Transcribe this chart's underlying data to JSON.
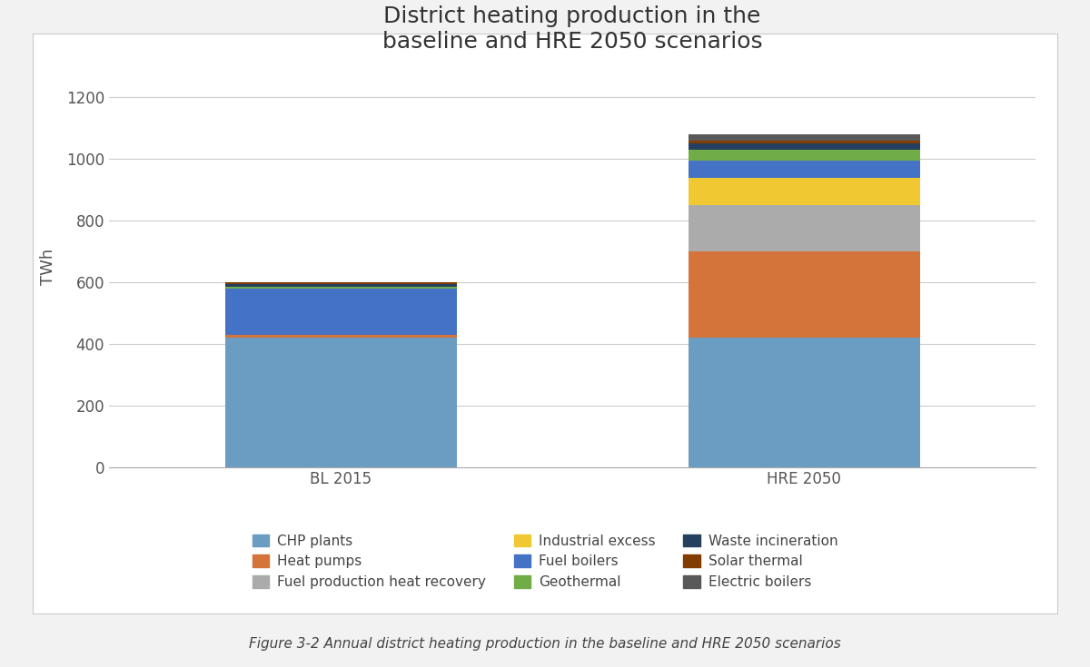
{
  "title": "District heating production in the\nbaseline and HRE 2050 scenarios",
  "ylabel": "TWh",
  "categories": [
    "BL 2015",
    "HRE 2050"
  ],
  "series": [
    {
      "label": "CHP plants",
      "color": "#6B9DC2",
      "values": [
        420,
        420
      ]
    },
    {
      "label": "Heat pumps",
      "color": "#D4743A",
      "values": [
        10,
        280
      ]
    },
    {
      "label": "Fuel production heat recovery",
      "color": "#ABABAB",
      "values": [
        0,
        150
      ]
    },
    {
      "label": "Industrial excess",
      "color": "#F0C832",
      "values": [
        0,
        90
      ]
    },
    {
      "label": "Fuel boilers",
      "color": "#4472C4",
      "values": [
        150,
        55
      ]
    },
    {
      "label": "Geothermal",
      "color": "#70AD47",
      "values": [
        5,
        35
      ]
    },
    {
      "label": "Waste incineration",
      "color": "#243F60",
      "values": [
        10,
        20
      ]
    },
    {
      "label": "Solar thermal",
      "color": "#833C00",
      "values": [
        5,
        10
      ]
    },
    {
      "label": "Electric boilers",
      "color": "#595959",
      "values": [
        0,
        20
      ]
    }
  ],
  "ylim": [
    0,
    1300
  ],
  "yticks": [
    0,
    200,
    400,
    600,
    800,
    1000,
    1200
  ],
  "x_positions": [
    0.25,
    0.75
  ],
  "bar_width": 0.25,
  "x_lim": [
    0,
    1
  ],
  "background_color": "#F2F2F2",
  "plot_bg_color": "#FFFFFF",
  "outer_bg_color": "#F2F2F2",
  "legend_ncol": 3,
  "caption": "Figure 3-2 Annual district heating production in the baseline and HRE 2050 scenarios",
  "title_fontsize": 18,
  "axis_label_fontsize": 13,
  "tick_fontsize": 12,
  "legend_fontsize": 11,
  "caption_fontsize": 11
}
